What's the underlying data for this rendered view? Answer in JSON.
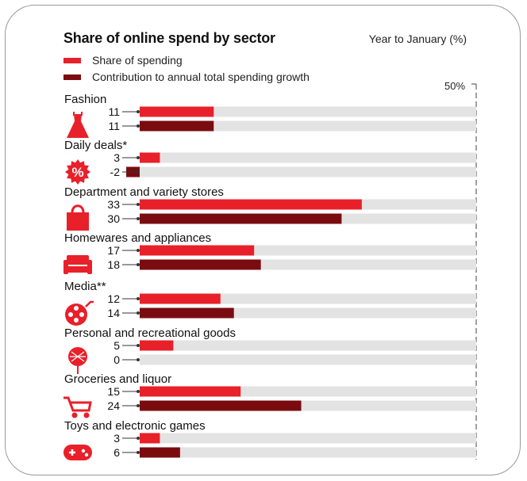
{
  "header": {
    "title": "Share of online spend by sector",
    "subtitle": "Year to January (%)"
  },
  "legend": [
    {
      "label": "Share of spending",
      "color": "#e8202a"
    },
    {
      "label": "Contribution to annual total spending growth",
      "color": "#7a0c10"
    }
  ],
  "scale_max_label": "50%",
  "chart_data": {
    "type": "bar",
    "orientation": "horizontal",
    "title": "Share of online spend by sector",
    "subtitle": "Year to January (%)",
    "xlim": [
      0,
      50
    ],
    "categories": [
      "Fashion",
      "Daily deals*",
      "Department and variety stores",
      "Homewares and appliances",
      "Media**",
      "Personal and recreational goods",
      "Groceries and liquor",
      "Toys and electronic games"
    ],
    "icons": [
      "dress-icon",
      "percent-badge-icon",
      "shopping-bag-icon",
      "sofa-icon",
      "film-reel-icon",
      "lollipop-icon",
      "shopping-cart-icon",
      "game-controller-icon"
    ],
    "series": [
      {
        "name": "Share of spending",
        "color": "#e8202a",
        "values": [
          11,
          3,
          33,
          17,
          12,
          5,
          15,
          3
        ]
      },
      {
        "name": "Contribution to annual total spending growth",
        "color": "#7a0c10",
        "values": [
          11,
          -2,
          30,
          18,
          14,
          0,
          24,
          6
        ]
      }
    ]
  }
}
